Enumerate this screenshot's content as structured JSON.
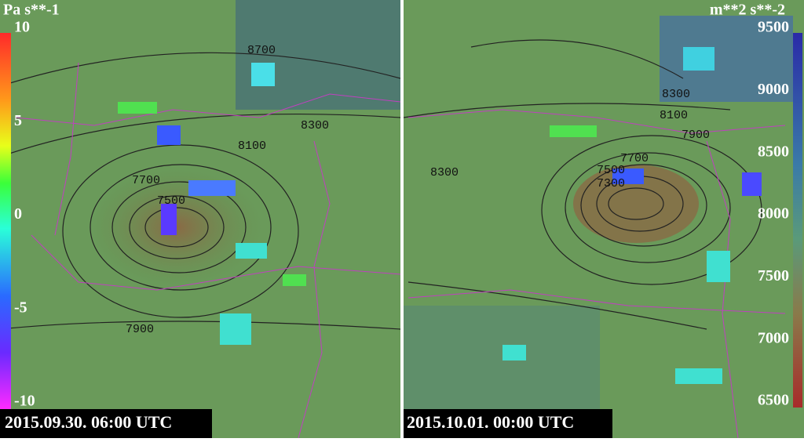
{
  "left_panel": {
    "unit": "Pa s**-1",
    "colorbar": {
      "ticks": [
        10,
        5,
        0,
        -5,
        -10
      ]
    },
    "contour_labels": [
      8700,
      8300,
      8100,
      7700,
      7500,
      7900
    ],
    "timestamp": "2015.09.30. 06:00 UTC"
  },
  "right_panel": {
    "unit": "m**2 s**-2",
    "colorbar": {
      "ticks": [
        9500,
        9000,
        8500,
        8000,
        7500,
        7000,
        6500
      ]
    },
    "contour_labels": [
      8300,
      8100,
      7900,
      7700,
      7500,
      7300,
      8300
    ],
    "timestamp": "2015.10.01. 00:00 UTC"
  }
}
